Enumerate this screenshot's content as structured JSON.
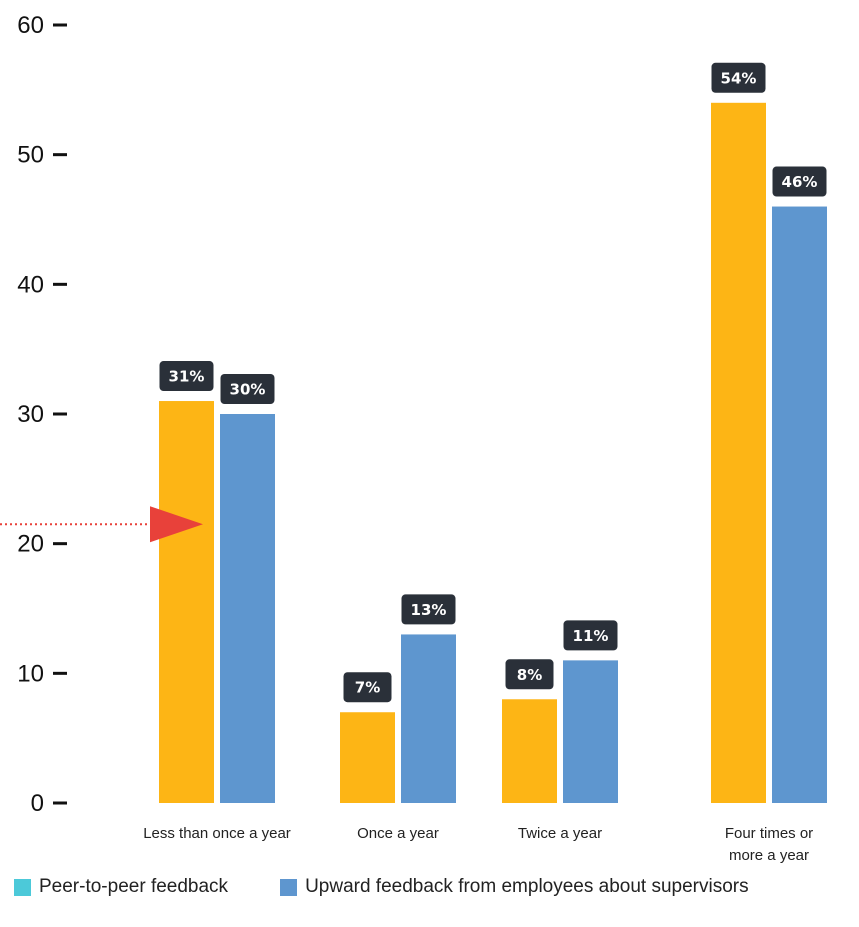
{
  "chart_data": {
    "type": "bar",
    "categories": [
      [
        "Less than once a year"
      ],
      [
        "Once a year"
      ],
      [
        "Twice a year"
      ],
      [
        "Four times or",
        "more a year"
      ]
    ],
    "series": [
      {
        "name": "Peer-to-peer feedback",
        "values": [
          31,
          7,
          8,
          54
        ],
        "labels": [
          "31%",
          "7%",
          "8%",
          "54%"
        ],
        "color": "#FDB515",
        "legend_color": "#4CC9D9"
      },
      {
        "name": "Upward feedback from employees about supervisors",
        "values": [
          30,
          13,
          11,
          46
        ],
        "labels": [
          "30%",
          "13%",
          "11%",
          "46%"
        ],
        "color": "#5E96CF",
        "legend_color": "#5E96CF"
      }
    ],
    "yticks": [
      "0",
      "10",
      "20",
      "30",
      "40",
      "50",
      "60"
    ],
    "ylim": [
      0,
      60
    ],
    "grid": false,
    "legend_position": "bottom-left",
    "data_label_color": "#2A3039",
    "annotation": {
      "type": "arrow",
      "at_value": 21.5,
      "color": "#E8413A"
    }
  }
}
